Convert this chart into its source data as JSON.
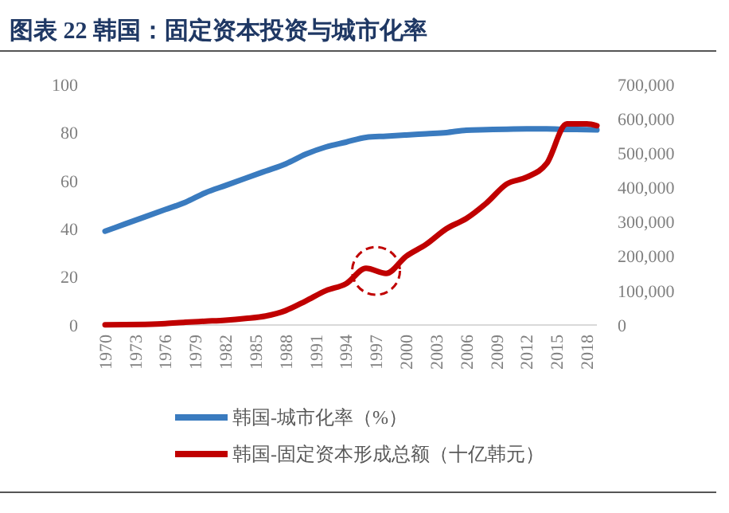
{
  "chart_data": {
    "type": "line",
    "title": "图表 22  韩国：固定资本投资与城市化率",
    "x": [
      1970,
      1972,
      1974,
      1976,
      1978,
      1980,
      1982,
      1984,
      1986,
      1988,
      1990,
      1992,
      1994,
      1996,
      1998,
      2000,
      2002,
      2004,
      2006,
      2008,
      2010,
      2012,
      2014,
      2016,
      2018,
      2019
    ],
    "xlim": [
      1970,
      2019
    ],
    "xticks": [
      1970,
      1973,
      1976,
      1979,
      1982,
      1985,
      1988,
      1991,
      1994,
      1997,
      2000,
      2003,
      2006,
      2009,
      2012,
      2015,
      2018
    ],
    "ylim": [
      0,
      100
    ],
    "yticks": [
      0,
      20,
      40,
      60,
      80,
      100
    ],
    "y2lim": [
      0,
      700000
    ],
    "y2ticks": [
      {
        "value": 0,
        "label": "0"
      },
      {
        "value": 100000,
        "label": "100,000"
      },
      {
        "value": 200000,
        "label": "200,000"
      },
      {
        "value": 300000,
        "label": "300,000"
      },
      {
        "value": 400000,
        "label": "400,000"
      },
      {
        "value": 500000,
        "label": "500,000"
      },
      {
        "value": 600000,
        "label": "600,000"
      },
      {
        "value": 700000,
        "label": "700,000"
      }
    ],
    "series": [
      {
        "name": "韩国-城市化率（%）",
        "color": "#3a7bbf",
        "values": [
          39,
          42,
          45,
          48,
          51,
          55,
          58,
          61,
          64,
          67,
          71,
          74,
          76,
          78,
          78.5,
          79,
          79.5,
          80,
          81,
          81.2,
          81.4,
          81.5,
          81.5,
          81.3,
          81.2,
          81.1
        ]
      },
      {
        "name": "韩国-固定资本形成总额（十亿韩元）",
        "color": "#c00000",
        "axis": "y2",
        "values": [
          500,
          1000,
          2000,
          4000,
          8000,
          11000,
          14000,
          19000,
          26000,
          42000,
          70000,
          100000,
          120000,
          165000,
          150000,
          200000,
          235000,
          280000,
          310000,
          355000,
          410000,
          430000,
          470000,
          585000,
          585000,
          580000
        ]
      }
    ],
    "grid": false,
    "legend": "bottom",
    "marker": "none",
    "line_style": "solid"
  }
}
